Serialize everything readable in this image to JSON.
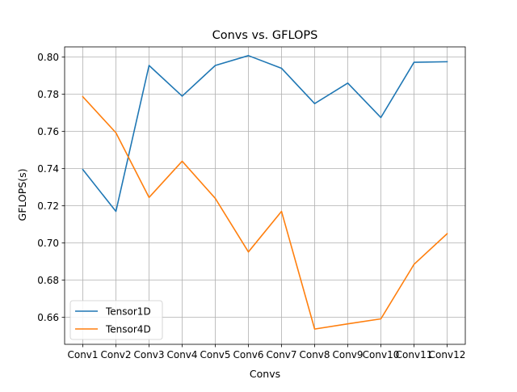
{
  "chart_data": {
    "type": "line",
    "title": "Convs vs. GFLOPS",
    "xlabel": "Convs",
    "ylabel": "GFLOPS(s)",
    "categories": [
      "Conv1",
      "Conv2",
      "Conv3",
      "Conv4",
      "Conv5",
      "Conv6",
      "Conv7",
      "Conv8",
      "Conv9",
      "Conv10",
      "Conv11",
      "Conv12"
    ],
    "ylim": [
      0.6455,
      0.8055
    ],
    "yticks": [
      "0.66",
      "0.68",
      "0.70",
      "0.72",
      "0.74",
      "0.76",
      "0.78",
      "0.80"
    ],
    "grid": true,
    "legend_position": "lower-left",
    "series": [
      {
        "name": "Tensor1D",
        "color": "#1f77b4",
        "values": [
          0.7395,
          0.717,
          0.7955,
          0.779,
          0.7955,
          0.8008,
          0.794,
          0.775,
          0.786,
          0.7675,
          0.7972,
          0.7975
        ]
      },
      {
        "name": "Tensor4D",
        "color": "#ff7f0e",
        "values": [
          0.7787,
          0.7593,
          0.7245,
          0.744,
          0.724,
          0.6952,
          0.717,
          0.6537,
          0.6565,
          0.6592,
          0.6885,
          0.705
        ]
      }
    ]
  }
}
